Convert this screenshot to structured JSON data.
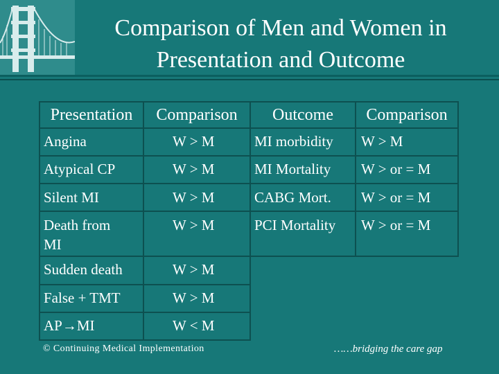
{
  "slide": {
    "title_line1": "Comparison of Men and Women in",
    "title_line2": "Presentation and Outcome"
  },
  "table": {
    "headers": {
      "presentation": "Presentation",
      "comparison1": "Comparison",
      "outcome": "Outcome",
      "comparison2": "Comparison"
    },
    "rows": [
      {
        "presentation": "Angina",
        "comparison1": "W > M",
        "outcome": "MI morbidity",
        "comparison2": "W > M"
      },
      {
        "presentation": "Atypical CP",
        "comparison1": "W > M",
        "outcome": "MI Mortality",
        "comparison2": "W > or = M"
      },
      {
        "presentation": "Silent MI",
        "comparison1": "W > M",
        "outcome": "CABG Mort.",
        "comparison2": "W > or = M"
      },
      {
        "presentation_line1": "Death from",
        "presentation_line2": "MI",
        "comparison1": "W > M",
        "outcome": "PCI Mortality",
        "comparison2": "W > or = M"
      },
      {
        "presentation": "Sudden death",
        "comparison1": "W > M"
      },
      {
        "presentation": "False + TMT",
        "comparison1": "W > M"
      },
      {
        "presentation": "AP→MI",
        "comparison1": "W < M"
      }
    ]
  },
  "footer": {
    "left": "© Continuing Medical Implementation",
    "right": "……bridging the care gap"
  },
  "colors": {
    "background": "#177878",
    "grid": "#0d5050",
    "text": "#ffffff"
  },
  "icons": {
    "logo": "golden-gate-bridge-icon"
  }
}
